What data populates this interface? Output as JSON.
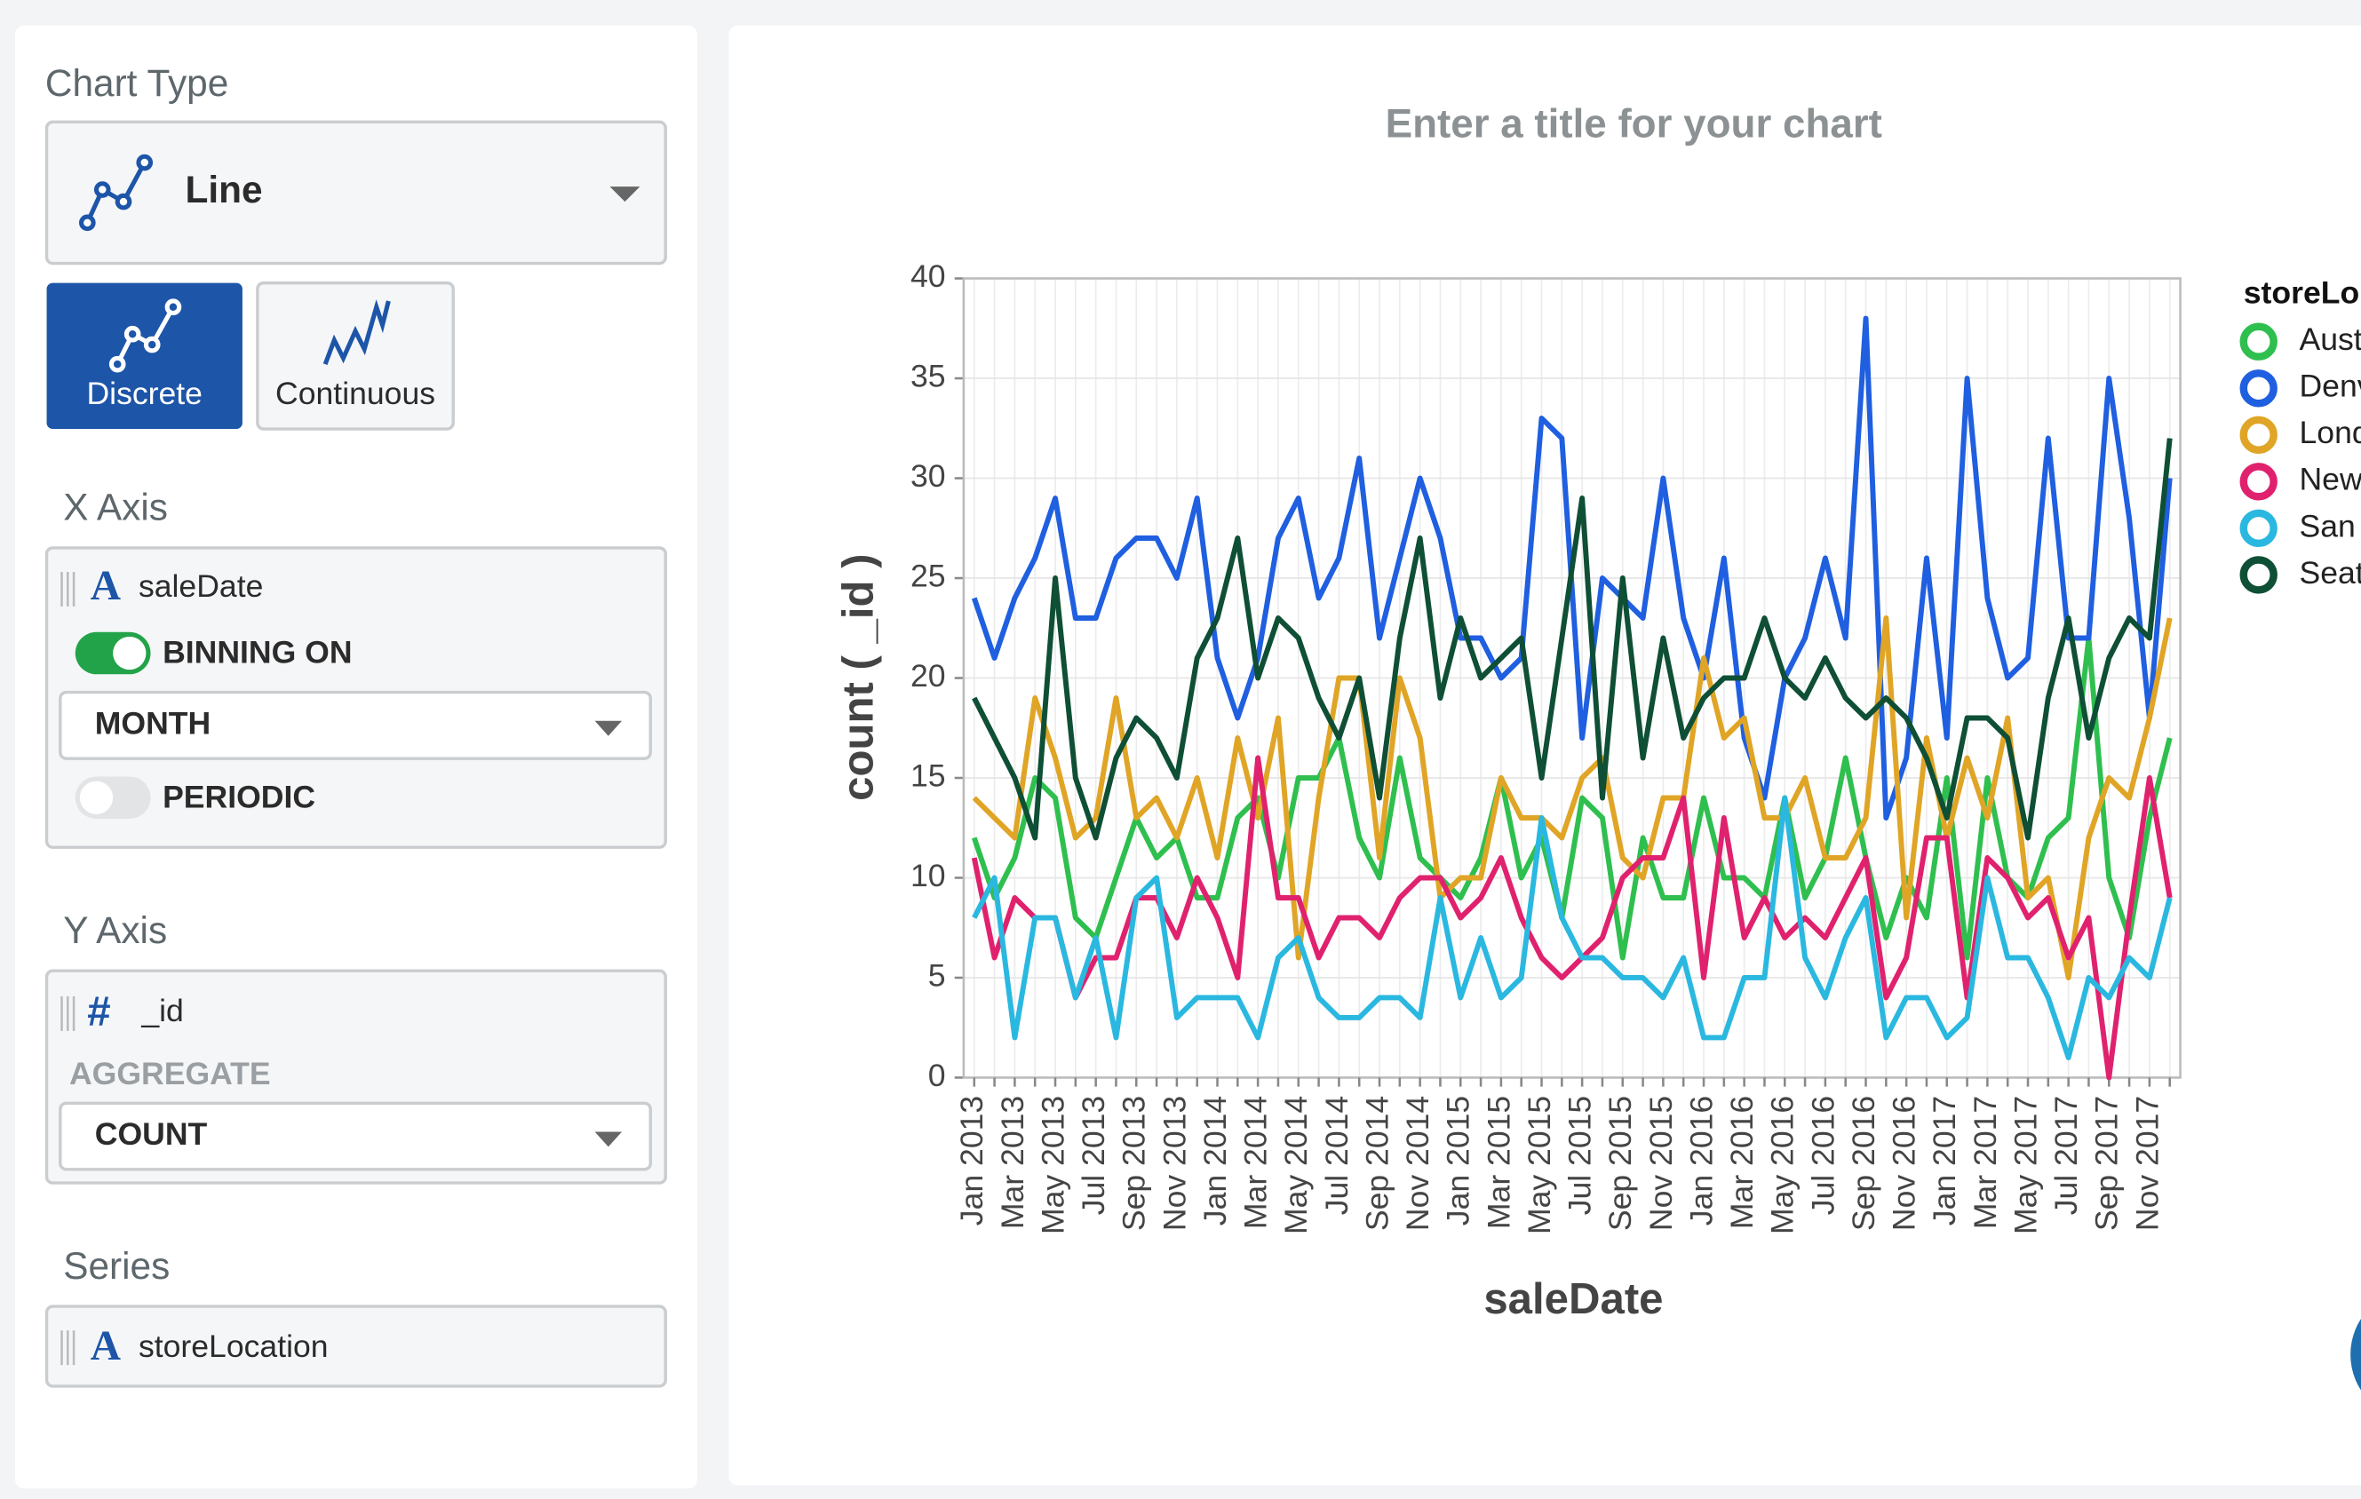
{
  "sidebar": {
    "chart_type_label": "Chart Type",
    "chart_type": "Line",
    "modes": [
      "Discrete",
      "Continuous"
    ],
    "x_axis": {
      "label": "X Axis",
      "icon": "A",
      "field": "saleDate",
      "binning": "BINNING ON",
      "bin": "MONTH",
      "periodic": "PERIODIC"
    },
    "y_axis": {
      "label": "Y Axis",
      "icon": "#",
      "field": "_id",
      "aggregate_label": "AGGREGATE",
      "aggregate": "COUNT"
    },
    "series": {
      "label": "Series",
      "icon": "A",
      "field": "storeLocation"
    }
  },
  "chart_data": {
    "type": "line",
    "title": "Enter a title for your chart",
    "x_label": "saleDate",
    "y_label": "count ( _id )",
    "legend_title": "storeLo",
    "categories": [
      "Jan 2013",
      null,
      "Mar 2013",
      null,
      "May 2013",
      null,
      "Jul 2013",
      null,
      "Sep 2013",
      null,
      "Nov 2013",
      null,
      "Jan 2014",
      null,
      "Mar 2014",
      null,
      "May 2014",
      null,
      "Jul 2014",
      null,
      "Sep 2014",
      null,
      "Nov 2014",
      null,
      "Jan 2015",
      null,
      "Mar 2015",
      null,
      "May 2015",
      null,
      "Jul 2015",
      null,
      "Sep 2015",
      null,
      "Nov 2015",
      null,
      "Jan 2016",
      null,
      "Mar 2016",
      null,
      "May 2016",
      null,
      "Jul 2016",
      null,
      "Sep 2016",
      null,
      "Nov 2016",
      null,
      "Jan 2017",
      null,
      "Mar 2017",
      null,
      "May 2017",
      null,
      "Jul 2017",
      null,
      "Sep 2017",
      null,
      "Nov 2017",
      null
    ],
    "series": [
      {
        "name": "Aust",
        "color": "#2fbf4f",
        "values": [
          12,
          9,
          11,
          15,
          14,
          8,
          7,
          10,
          13,
          11,
          12,
          9,
          9,
          13,
          14,
          10,
          15,
          15,
          17,
          12,
          10,
          16,
          11,
          10,
          9,
          11,
          15,
          10,
          12,
          8,
          14,
          13,
          6,
          12,
          9,
          9,
          14,
          10,
          10,
          9,
          14,
          9,
          11,
          16,
          11,
          7,
          10,
          8,
          15,
          6,
          15,
          10,
          9,
          12,
          13,
          22,
          10,
          7,
          13,
          17
        ]
      },
      {
        "name": "Denv",
        "color": "#1f5fe0",
        "values": [
          24,
          21,
          24,
          26,
          29,
          23,
          23,
          26,
          27,
          27,
          25,
          29,
          21,
          18,
          21,
          27,
          29,
          24,
          26,
          31,
          22,
          26,
          30,
          27,
          22,
          22,
          20,
          21,
          33,
          32,
          17,
          25,
          24,
          23,
          30,
          23,
          20,
          26,
          17,
          14,
          20,
          22,
          26,
          22,
          38,
          13,
          16,
          26,
          17,
          35,
          24,
          20,
          21,
          32,
          22,
          22,
          35,
          28,
          18,
          30
        ]
      },
      {
        "name": "Lond",
        "color": "#e0a526",
        "values": [
          14,
          13,
          12,
          19,
          16,
          12,
          13,
          19,
          13,
          14,
          12,
          15,
          11,
          17,
          13,
          18,
          6,
          14,
          20,
          20,
          11,
          20,
          17,
          9,
          10,
          10,
          15,
          13,
          13,
          12,
          15,
          16,
          11,
          10,
          14,
          14,
          21,
          17,
          18,
          13,
          13,
          15,
          11,
          11,
          13,
          23,
          8,
          17,
          12,
          16,
          13,
          18,
          9,
          10,
          5,
          12,
          15,
          14,
          18,
          23
        ]
      },
      {
        "name": "New",
        "color": "#e0226e",
        "values": [
          11,
          6,
          9,
          8,
          8,
          4,
          6,
          6,
          9,
          9,
          7,
          10,
          8,
          5,
          16,
          9,
          9,
          6,
          8,
          8,
          7,
          9,
          10,
          10,
          8,
          9,
          11,
          8,
          6,
          5,
          6,
          7,
          10,
          11,
          11,
          14,
          5,
          13,
          7,
          9,
          7,
          8,
          7,
          9,
          11,
          4,
          6,
          12,
          12,
          4,
          11,
          10,
          8,
          9,
          6,
          8,
          0,
          8,
          15,
          9
        ]
      },
      {
        "name": "San",
        "color": "#2ab8e0",
        "values": [
          8,
          10,
          2,
          8,
          8,
          4,
          7,
          2,
          9,
          10,
          3,
          4,
          4,
          4,
          2,
          6,
          7,
          4,
          3,
          3,
          4,
          4,
          3,
          9,
          4,
          7,
          4,
          5,
          13,
          8,
          6,
          6,
          5,
          5,
          4,
          6,
          2,
          2,
          5,
          5,
          14,
          6,
          4,
          7,
          9,
          2,
          4,
          4,
          2,
          3,
          10,
          6,
          6,
          4,
          1,
          5,
          4,
          6,
          5,
          9
        ]
      },
      {
        "name": "Seat",
        "color": "#0e4f35",
        "values": [
          19,
          17,
          15,
          12,
          25,
          15,
          12,
          16,
          18,
          17,
          15,
          21,
          23,
          27,
          20,
          23,
          22,
          19,
          17,
          20,
          14,
          22,
          27,
          19,
          23,
          20,
          21,
          22,
          15,
          22,
          29,
          14,
          25,
          16,
          22,
          17,
          19,
          20,
          20,
          23,
          20,
          19,
          21,
          19,
          18,
          19,
          18,
          16,
          13,
          18,
          18,
          17,
          12,
          19,
          23,
          17,
          21,
          23,
          22,
          32
        ]
      }
    ],
    "ylim": [
      0,
      40
    ],
    "yticks": [
      0,
      5,
      10,
      15,
      20,
      25,
      30,
      35,
      40
    ],
    "grid": true
  }
}
